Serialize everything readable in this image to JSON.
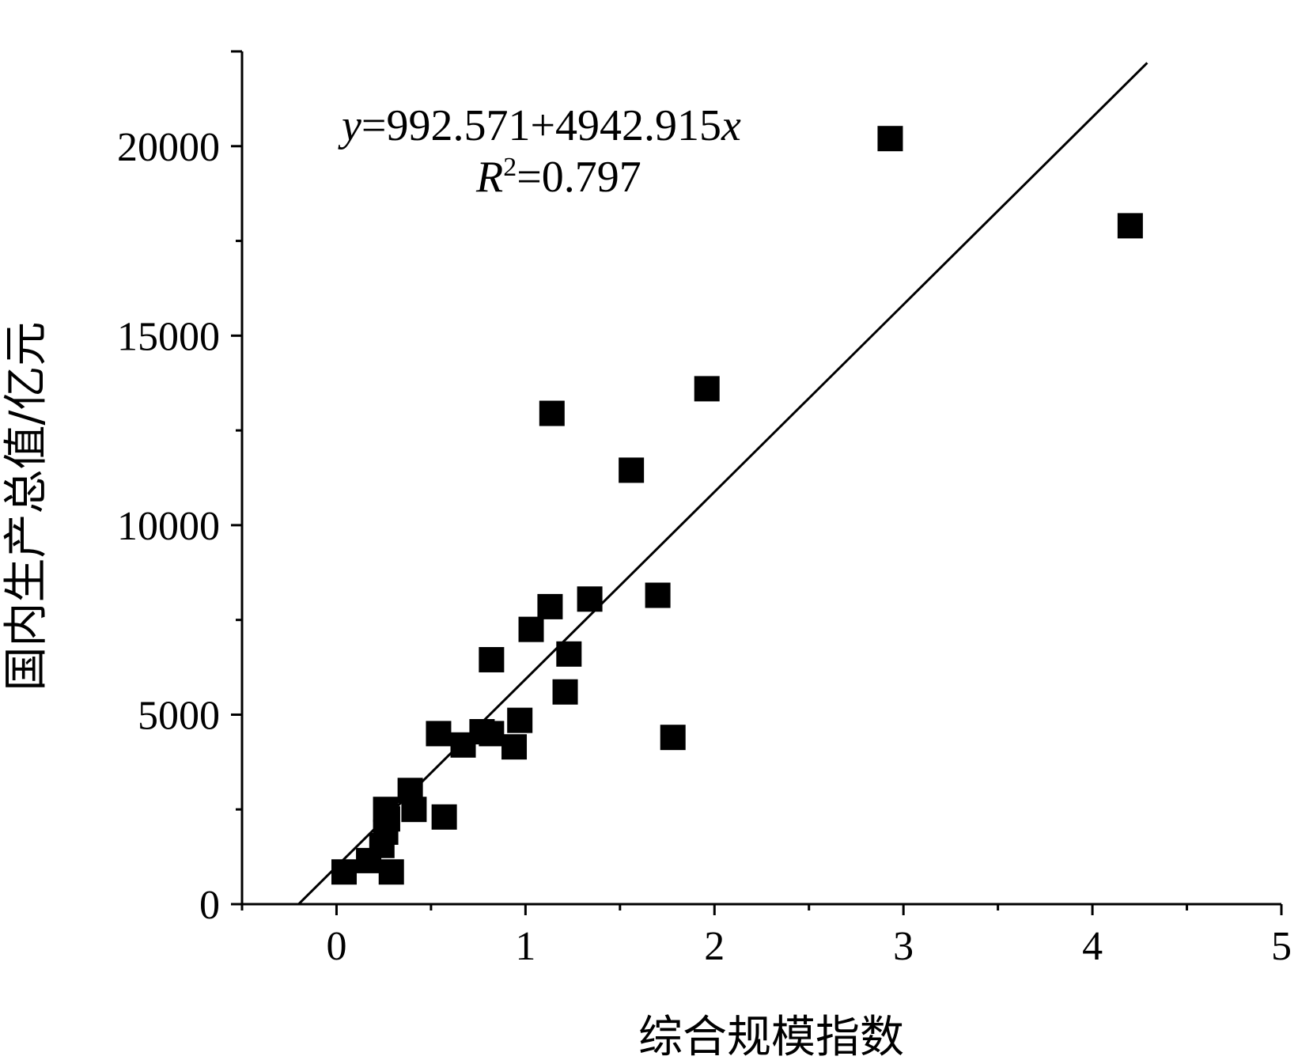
{
  "chart_data": {
    "type": "scatter",
    "title": "",
    "xlabel": "综合规模指数",
    "ylabel": "国内生产总值/亿元",
    "xlim": [
      -0.5,
      5
    ],
    "ylim": [
      0,
      22500
    ],
    "x_ticks": [
      "0",
      "1",
      "2",
      "3",
      "4",
      "5"
    ],
    "y_ticks": [
      "0",
      "5000",
      "10000",
      "15000",
      "20000"
    ],
    "grid": false,
    "series": [
      {
        "points": [
          {
            "x": 0.04,
            "y": 850
          },
          {
            "x": 0.17,
            "y": 1150
          },
          {
            "x": 0.24,
            "y": 1550
          },
          {
            "x": 0.26,
            "y": 1900
          },
          {
            "x": 0.27,
            "y": 2250
          },
          {
            "x": 0.26,
            "y": 2500
          },
          {
            "x": 0.29,
            "y": 850
          },
          {
            "x": 0.39,
            "y": 3000
          },
          {
            "x": 0.41,
            "y": 2500
          },
          {
            "x": 0.54,
            "y": 4500
          },
          {
            "x": 0.57,
            "y": 2300
          },
          {
            "x": 0.67,
            "y": 4200
          },
          {
            "x": 0.77,
            "y": 4550
          },
          {
            "x": 0.82,
            "y": 4500
          },
          {
            "x": 0.82,
            "y": 6450
          },
          {
            "x": 0.94,
            "y": 4150
          },
          {
            "x": 0.97,
            "y": 4850
          },
          {
            "x": 1.03,
            "y": 7250
          },
          {
            "x": 1.13,
            "y": 7850
          },
          {
            "x": 1.14,
            "y": 12950
          },
          {
            "x": 1.21,
            "y": 5600
          },
          {
            "x": 1.23,
            "y": 6600
          },
          {
            "x": 1.34,
            "y": 8050
          },
          {
            "x": 1.56,
            "y": 11450
          },
          {
            "x": 1.7,
            "y": 8150
          },
          {
            "x": 1.78,
            "y": 4400
          },
          {
            "x": 1.96,
            "y": 13600
          },
          {
            "x": 2.93,
            "y": 20200
          },
          {
            "x": 4.2,
            "y": 17900
          }
        ]
      }
    ],
    "fit": {
      "intercept": 992.571,
      "slope": 4942.915,
      "x_range": [
        -0.2,
        4.29
      ]
    },
    "annotations": {
      "eq_y": "y",
      "eq_rest": "=992.571+4942.915",
      "eq_x": "x",
      "r_sym": "R",
      "r_sup": "2",
      "r_rest": "=0.797"
    }
  }
}
